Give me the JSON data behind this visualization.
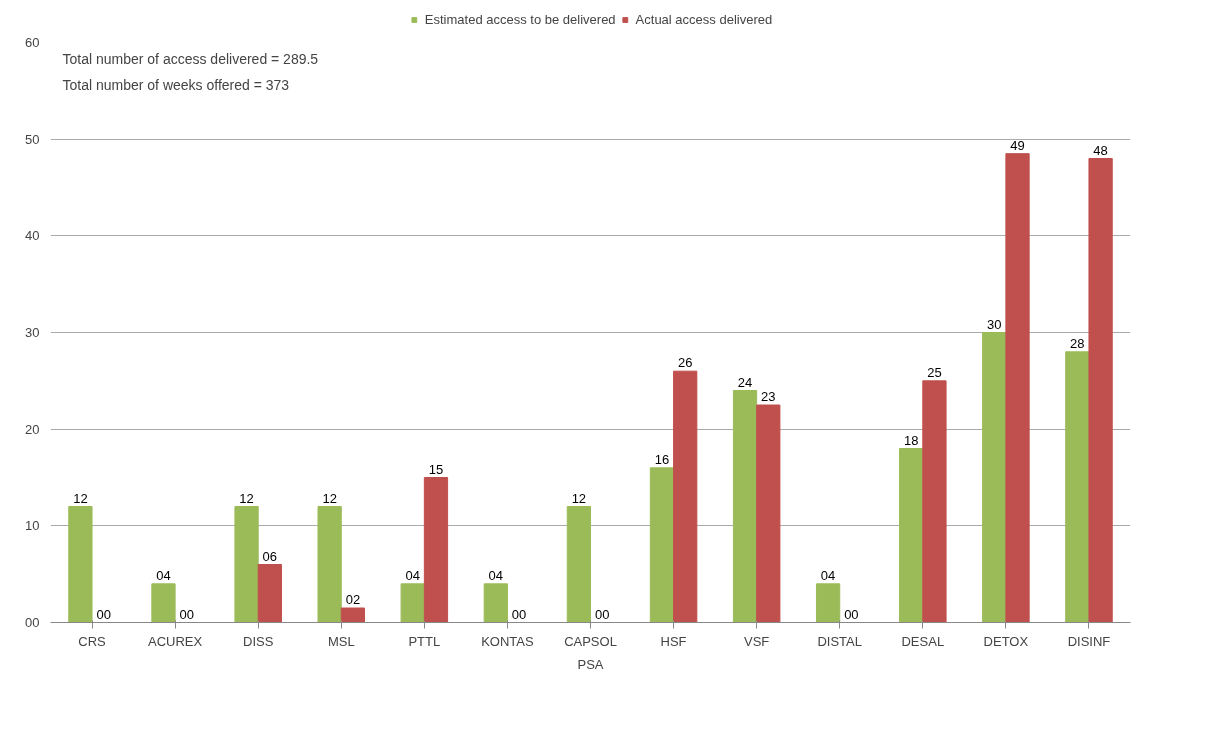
{
  "chart_data": {
    "type": "bar",
    "xlabel": "PSA",
    "categories": [
      "CRS",
      "ACUREX",
      "DISS",
      "MSL",
      "PTTL",
      "KONTAS",
      "CAPSOL",
      "HSF",
      "VSF",
      "DISTAL",
      "DESAL",
      "DETOX",
      "DISINF"
    ],
    "series": [
      {
        "name": "Estimated access to be delivered",
        "color": "#9bbb59",
        "values": [
          12,
          4,
          12,
          12,
          4,
          4,
          12,
          16,
          24,
          4,
          18,
          30,
          28
        ],
        "value_labels": [
          "12",
          "04",
          "12",
          "12",
          "04",
          "04",
          "12",
          "16",
          "24",
          "04",
          "18",
          "30",
          "28"
        ]
      },
      {
        "name": "Actual access delivered",
        "color": "#c0504d",
        "values": [
          0,
          0,
          6,
          1.5,
          15,
          0,
          0,
          26,
          22.5,
          0,
          25,
          48.5,
          48
        ],
        "value_labels": [
          "00",
          "00",
          "06",
          "02",
          "15",
          "00",
          "00",
          "26",
          "23",
          "00",
          "25",
          "49",
          "48"
        ]
      }
    ],
    "ylim": [
      0,
      60
    ],
    "yticks": [
      {
        "value": 0,
        "label": "00"
      },
      10,
      20,
      30,
      40,
      50,
      60
    ],
    "grid": "y",
    "legend": "top",
    "annotations": [
      "Total number of access delivered = 289.5",
      "Total number of weeks offered = 373"
    ]
  }
}
